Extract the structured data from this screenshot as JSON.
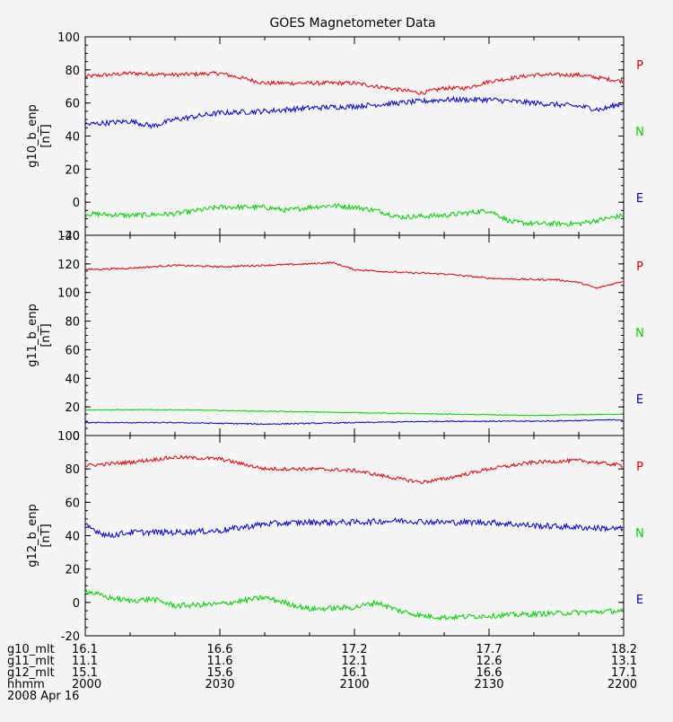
{
  "title": "GOES Magnetometer Data",
  "colors": {
    "P": "#e00000",
    "N": "#00d000",
    "E": "#0000c8",
    "axis": "#000000",
    "bg": "#f5f5f5"
  },
  "legend": [
    {
      "label": "P",
      "color_key": "P"
    },
    {
      "label": "N",
      "color_key": "N"
    },
    {
      "label": "E",
      "color_key": "E"
    }
  ],
  "footer": {
    "rows": [
      {
        "label": "g10_mlt",
        "values": [
          "16.1",
          "16.6",
          "17.2",
          "17.7",
          "18.2"
        ]
      },
      {
        "label": "g11_mlt",
        "values": [
          "11.1",
          "11.6",
          "12.1",
          "12.6",
          "13.1"
        ]
      },
      {
        "label": "g12_mlt",
        "values": [
          "15.1",
          "15.6",
          "16.1",
          "16.6",
          "17.1"
        ]
      },
      {
        "label": "hhmm",
        "values": [
          "2000",
          "2030",
          "2100",
          "2130",
          "2200"
        ]
      }
    ],
    "date": "2008 Apr 16"
  },
  "chart_data": [
    {
      "type": "line",
      "ylabel": "g10_b_enp",
      "yunit": "[nT]",
      "xlim": [
        0,
        120
      ],
      "ylim": [
        -20,
        100
      ],
      "yticks": [
        -20,
        0,
        20,
        40,
        60,
        80,
        100
      ],
      "grid": false,
      "series": [
        {
          "name": "P",
          "color_key": "P",
          "noise": 1.2,
          "points": [
            [
              0,
              76
            ],
            [
              10,
              78
            ],
            [
              20,
              77
            ],
            [
              30,
              78
            ],
            [
              40,
              72
            ],
            [
              50,
              72
            ],
            [
              60,
              72
            ],
            [
              70,
              68
            ],
            [
              75,
              66
            ],
            [
              80,
              69
            ],
            [
              85,
              69
            ],
            [
              90,
              73
            ],
            [
              100,
              77
            ],
            [
              110,
              77
            ],
            [
              120,
              73
            ]
          ]
        },
        {
          "name": "N",
          "color_key": "N",
          "noise": 1.5,
          "points": [
            [
              0,
              -7
            ],
            [
              10,
              -8
            ],
            [
              20,
              -7
            ],
            [
              30,
              -3
            ],
            [
              40,
              -3
            ],
            [
              45,
              -5
            ],
            [
              50,
              -3
            ],
            [
              55,
              -2
            ],
            [
              60,
              -3
            ],
            [
              65,
              -5
            ],
            [
              70,
              -9
            ],
            [
              80,
              -8
            ],
            [
              90,
              -5
            ],
            [
              95,
              -12
            ],
            [
              100,
              -13
            ],
            [
              110,
              -13
            ],
            [
              120,
              -8
            ]
          ]
        },
        {
          "name": "E",
          "color_key": "E",
          "noise": 1.6,
          "points": [
            [
              0,
              47
            ],
            [
              10,
              49
            ],
            [
              15,
              46
            ],
            [
              20,
              50
            ],
            [
              30,
              54
            ],
            [
              40,
              55
            ],
            [
              50,
              57
            ],
            [
              60,
              58
            ],
            [
              70,
              60
            ],
            [
              80,
              62
            ],
            [
              90,
              62
            ],
            [
              100,
              60
            ],
            [
              110,
              58
            ],
            [
              115,
              56
            ],
            [
              120,
              60
            ]
          ]
        }
      ]
    },
    {
      "type": "line",
      "ylabel": "g11_b_enp",
      "yunit": "[nT]",
      "xlim": [
        0,
        120
      ],
      "ylim": [
        0,
        140
      ],
      "yticks": [
        0,
        20,
        40,
        60,
        80,
        100,
        120,
        140
      ],
      "grid": false,
      "series": [
        {
          "name": "P",
          "color_key": "P",
          "noise": 0.6,
          "points": [
            [
              0,
              116
            ],
            [
              10,
              117
            ],
            [
              20,
              119
            ],
            [
              30,
              118
            ],
            [
              40,
              119
            ],
            [
              50,
              120
            ],
            [
              55,
              121
            ],
            [
              60,
              116
            ],
            [
              70,
              114
            ],
            [
              80,
              113
            ],
            [
              90,
              110
            ],
            [
              100,
              109
            ],
            [
              105,
              109
            ],
            [
              110,
              107
            ],
            [
              114,
              103
            ],
            [
              120,
              108
            ]
          ]
        },
        {
          "name": "N",
          "color_key": "N",
          "noise": 0.3,
          "points": [
            [
              0,
              18
            ],
            [
              20,
              18
            ],
            [
              40,
              17
            ],
            [
              60,
              16
            ],
            [
              80,
              15
            ],
            [
              100,
              14
            ],
            [
              120,
              15
            ]
          ]
        },
        {
          "name": "E",
          "color_key": "E",
          "noise": 0.4,
          "points": [
            [
              0,
              9
            ],
            [
              20,
              9
            ],
            [
              40,
              8
            ],
            [
              60,
              9
            ],
            [
              80,
              10
            ],
            [
              100,
              10
            ],
            [
              120,
              11
            ]
          ]
        }
      ]
    },
    {
      "type": "line",
      "ylabel": "g12_b_enp",
      "yunit": "[nT]",
      "xlim": [
        0,
        120
      ],
      "ylim": [
        -20,
        100
      ],
      "yticks": [
        -20,
        0,
        20,
        40,
        60,
        80,
        100
      ],
      "grid": false,
      "series": [
        {
          "name": "P",
          "color_key": "P",
          "noise": 1.1,
          "points": [
            [
              0,
              82
            ],
            [
              10,
              84
            ],
            [
              20,
              87
            ],
            [
              30,
              86
            ],
            [
              40,
              80
            ],
            [
              50,
              80
            ],
            [
              60,
              79
            ],
            [
              70,
              74
            ],
            [
              75,
              72
            ],
            [
              80,
              74
            ],
            [
              90,
              80
            ],
            [
              100,
              84
            ],
            [
              110,
              85
            ],
            [
              120,
              82
            ]
          ]
        },
        {
          "name": "N",
          "color_key": "N",
          "noise": 1.6,
          "points": [
            [
              0,
              7
            ],
            [
              5,
              3
            ],
            [
              10,
              1
            ],
            [
              15,
              2
            ],
            [
              20,
              -2
            ],
            [
              30,
              -1
            ],
            [
              40,
              3
            ],
            [
              50,
              -4
            ],
            [
              60,
              -3
            ],
            [
              65,
              0
            ],
            [
              70,
              -5
            ],
            [
              75,
              -8
            ],
            [
              80,
              -9
            ],
            [
              90,
              -8
            ],
            [
              100,
              -7
            ],
            [
              110,
              -6
            ],
            [
              120,
              -5
            ]
          ]
        },
        {
          "name": "E",
          "color_key": "E",
          "noise": 1.8,
          "points": [
            [
              0,
              46
            ],
            [
              5,
              40
            ],
            [
              10,
              42
            ],
            [
              20,
              42
            ],
            [
              30,
              43
            ],
            [
              40,
              47
            ],
            [
              50,
              48
            ],
            [
              60,
              48
            ],
            [
              70,
              49
            ],
            [
              80,
              48
            ],
            [
              90,
              48
            ],
            [
              100,
              46
            ],
            [
              110,
              45
            ],
            [
              120,
              44
            ]
          ]
        }
      ]
    }
  ]
}
